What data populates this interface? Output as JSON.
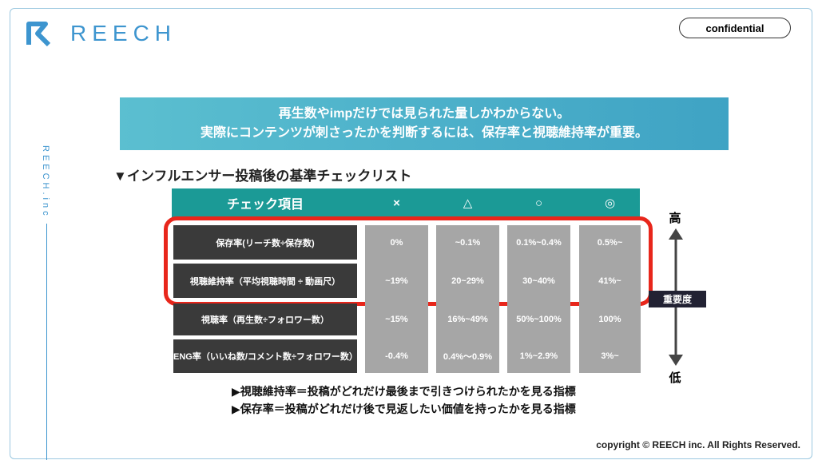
{
  "header": {
    "logo": "REECH",
    "badge": "confidential",
    "side_label": "REECH.inc"
  },
  "banner": {
    "lines": [
      "再生数やimpだけでは見られた量しかわからない。",
      "実際にコンテンツが刺さったかを判断するには、保存率と視聴維持率が重要。"
    ]
  },
  "heading": "▼インフルエンサー投稿後の基準チェックリスト",
  "table": {
    "columns": [
      "チェック項目",
      "×",
      "△",
      "○",
      "◎"
    ],
    "rows": [
      [
        "保存率(リーチ数÷保存数)",
        "0%",
        "~0.1%",
        "0.1%~0.4%",
        "0.5%~"
      ],
      [
        "視聴維持率（平均視聴時間 ÷ 動画尺）",
        "~19%",
        "20~29%",
        "30~40%",
        "41%~"
      ],
      [
        "視聴率（再生数÷フォロワー数）",
        "~15%",
        "16%~49%",
        "50%~100%",
        "100%"
      ],
      [
        "ENG率（いいね数/コメント数÷フォロワー数）",
        "-0.4%",
        "0.4%〜0.9%",
        "1%~2.9%",
        "3%~"
      ]
    ]
  },
  "scale": {
    "high": "高",
    "label": "重要度",
    "low": "低"
  },
  "notes": [
    "▶視聴維持率＝投稿がどれだけ最後まで引きつけられたかを見る指標",
    "▶保存率＝投稿がどれだけ後で見返したい価値を持ったかを見る指標"
  ],
  "footer": "copyright © REECH inc. All Rights Reserved."
}
